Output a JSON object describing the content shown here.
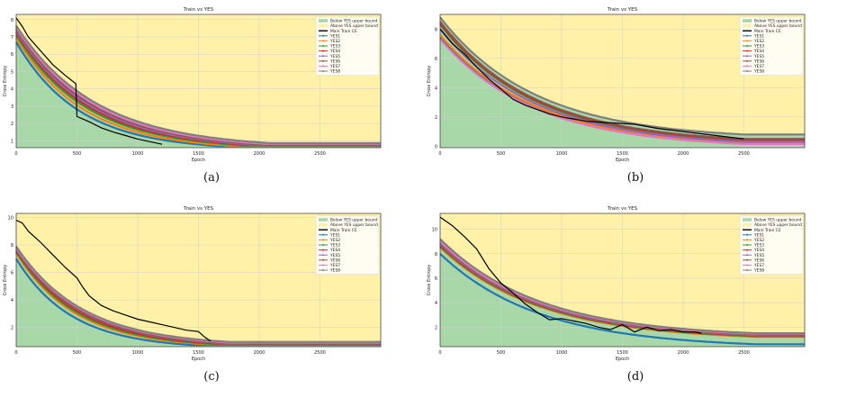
{
  "chart_data": [
    {
      "type": "line",
      "panel": "(a)",
      "title": "Train vs YES",
      "xlabel": "Epoch",
      "ylabel": "Cross Entropy",
      "xlim": [
        0,
        3000
      ],
      "ylim": [
        0.6,
        8.3
      ],
      "xticks": [
        0,
        500,
        1000,
        1500,
        2000,
        2500
      ],
      "yticks": [
        1,
        2,
        3,
        4,
        5,
        6,
        7,
        8
      ],
      "grid": true,
      "legend_position": "top-right",
      "legend": [
        "Below YES upper bound",
        "Above YES upper bound",
        "Main Train CE",
        "YES1",
        "YES2",
        "YES3",
        "YES4",
        "YES5",
        "YES6",
        "YES7",
        "YES8"
      ],
      "series": [
        {
          "name": "YES1",
          "color": "#1f77b4",
          "start": 6.7,
          "end": 0.7,
          "settle": 1650
        },
        {
          "name": "YES2",
          "color": "#ff7f0e",
          "start": 6.95,
          "end": 0.72,
          "settle": 1750
        },
        {
          "name": "YES3",
          "color": "#2ca02c",
          "start": 7.1,
          "end": 0.74,
          "settle": 1850
        },
        {
          "name": "YES4",
          "color": "#d62728",
          "start": 7.25,
          "end": 0.76,
          "settle": 1900
        },
        {
          "name": "YES5",
          "color": "#9467bd",
          "start": 7.35,
          "end": 0.78,
          "settle": 1950
        },
        {
          "name": "YES6",
          "color": "#8c564b",
          "start": 7.45,
          "end": 0.8,
          "settle": 2000
        },
        {
          "name": "YES7",
          "color": "#e377c2",
          "start": 7.55,
          "end": 0.82,
          "settle": 2050
        },
        {
          "name": "YES8",
          "color": "#7f7f7f",
          "start": 7.65,
          "end": 0.86,
          "settle": 2100
        },
        {
          "name": "Main Train CE",
          "color": "#000000",
          "x": [
            0,
            50,
            100,
            200,
            300,
            400,
            490,
            500,
            600,
            700,
            800,
            900,
            1000,
            1100,
            1200
          ],
          "y": [
            8.1,
            7.6,
            7.0,
            6.2,
            5.4,
            4.8,
            4.3,
            2.4,
            2.1,
            1.75,
            1.5,
            1.3,
            1.1,
            0.95,
            0.8
          ]
        }
      ]
    },
    {
      "type": "line",
      "panel": "(b)",
      "title": "Train vs YES",
      "xlabel": "Epoch",
      "ylabel": "Cross Entropy",
      "xlim": [
        0,
        3000
      ],
      "ylim": [
        -0.1,
        9.0
      ],
      "xticks": [
        0,
        500,
        1000,
        1500,
        2000,
        2500
      ],
      "yticks": [
        0,
        2,
        4,
        6,
        8
      ],
      "grid": true,
      "legend_position": "top-right",
      "legend": [
        "Below YES upper bound",
        "Above YES upper bound",
        "Main Train CE",
        "YES1",
        "YES2",
        "YES3",
        "YES4",
        "YES5",
        "YES6",
        "YES7",
        "YES8"
      ],
      "series": [
        {
          "name": "YES1",
          "color": "#1f77b4",
          "start": 7.4,
          "end": 0.2,
          "settle": 2500
        },
        {
          "name": "YES2",
          "color": "#ff7f0e",
          "start": 7.6,
          "end": 0.25,
          "settle": 2500
        },
        {
          "name": "YES3",
          "color": "#2ca02c",
          "start": 8.3,
          "end": 0.4,
          "settle": 2500
        },
        {
          "name": "YES4",
          "color": "#d62728",
          "start": 8.4,
          "end": 0.45,
          "settle": 2500
        },
        {
          "name": "YES5",
          "color": "#9467bd",
          "start": 8.0,
          "end": 0.3,
          "settle": 2500
        },
        {
          "name": "YES6",
          "color": "#8c564b",
          "start": 8.5,
          "end": 0.5,
          "settle": 2500
        },
        {
          "name": "YES7",
          "color": "#e377c2",
          "start": 7.3,
          "end": 0.15,
          "settle": 2500
        },
        {
          "name": "YES8",
          "color": "#7f7f7f",
          "start": 8.8,
          "end": 0.8,
          "settle": 2500
        },
        {
          "name": "Main Train CE",
          "color": "#000000",
          "x": [
            0,
            100,
            200,
            300,
            400,
            500,
            600,
            700,
            800,
            900,
            1000,
            1200,
            1400,
            1600,
            1800,
            2000,
            2200,
            2400,
            2500
          ],
          "y": [
            8.0,
            7.0,
            6.3,
            5.4,
            4.6,
            3.9,
            3.2,
            2.8,
            2.5,
            2.2,
            2.0,
            1.7,
            1.6,
            1.5,
            1.2,
            1.0,
            0.8,
            0.6,
            0.5
          ]
        }
      ]
    },
    {
      "type": "line",
      "panel": "(c)",
      "title": "Train vs YES",
      "xlabel": "Epoch",
      "ylabel": "Cross Entropy",
      "xlim": [
        0,
        3000
      ],
      "ylim": [
        0.6,
        10.3
      ],
      "xticks": [
        0,
        500,
        1000,
        1500,
        2000,
        2500
      ],
      "yticks": [
        2,
        4,
        6,
        8,
        10
      ],
      "grid": true,
      "legend_position": "top-right",
      "legend": [
        "Below YES upper bound",
        "Above YES upper bound",
        "Main Train CE",
        "YES1",
        "YES2",
        "YES3",
        "YES4",
        "YES5",
        "YES6",
        "YES7",
        "YES8"
      ],
      "series": [
        {
          "name": "YES1",
          "color": "#1f77b4",
          "start": 7.0,
          "end": 0.72,
          "settle": 1450
        },
        {
          "name": "YES2",
          "color": "#ff7f0e",
          "start": 7.4,
          "end": 0.78,
          "settle": 1550
        },
        {
          "name": "YES3",
          "color": "#2ca02c",
          "start": 7.5,
          "end": 0.8,
          "settle": 1600
        },
        {
          "name": "YES4",
          "color": "#d62728",
          "start": 7.6,
          "end": 0.82,
          "settle": 1650
        },
        {
          "name": "YES5",
          "color": "#9467bd",
          "start": 7.7,
          "end": 0.85,
          "settle": 1700
        },
        {
          "name": "YES6",
          "color": "#8c564b",
          "start": 7.75,
          "end": 0.88,
          "settle": 1700
        },
        {
          "name": "YES7",
          "color": "#e377c2",
          "start": 7.8,
          "end": 0.9,
          "settle": 1750
        },
        {
          "name": "YES8",
          "color": "#7f7f7f",
          "start": 7.9,
          "end": 0.95,
          "settle": 1750
        },
        {
          "name": "Main Train CE",
          "color": "#000000",
          "x": [
            0,
            50,
            100,
            200,
            300,
            400,
            500,
            550,
            600,
            700,
            800,
            900,
            1000,
            1100,
            1200,
            1300,
            1400,
            1500,
            1550,
            1600
          ],
          "y": [
            9.8,
            9.6,
            9.0,
            8.2,
            7.3,
            6.4,
            5.6,
            4.9,
            4.3,
            3.6,
            3.2,
            2.9,
            2.6,
            2.4,
            2.2,
            2.0,
            1.8,
            1.7,
            1.3,
            1.0
          ]
        }
      ]
    },
    {
      "type": "line",
      "panel": "(d)",
      "title": "Train vs YES",
      "xlabel": "Epoch",
      "ylabel": "Cross Entropy",
      "xlim": [
        0,
        3000
      ],
      "ylim": [
        0.4,
        11.3
      ],
      "xticks": [
        0,
        500,
        1000,
        1500,
        2000,
        2500
      ],
      "yticks": [
        2,
        4,
        6,
        8,
        10
      ],
      "grid": true,
      "legend_position": "top-right",
      "legend": [
        "Below YES upper bound",
        "Above YES upper bound",
        "Main Train CE",
        "YES1",
        "YES2",
        "YES3",
        "YES4",
        "YES5",
        "YES6",
        "YES7",
        "YES8"
      ],
      "series": [
        {
          "name": "YES1",
          "color": "#1f77b4",
          "start": 8.0,
          "end": 0.6,
          "settle": 2600
        },
        {
          "name": "YES2",
          "color": "#ff7f0e",
          "start": 8.5,
          "end": 1.2,
          "settle": 2600
        },
        {
          "name": "YES3",
          "color": "#2ca02c",
          "start": 8.6,
          "end": 1.25,
          "settle": 2600
        },
        {
          "name": "YES4",
          "color": "#d62728",
          "start": 8.7,
          "end": 1.3,
          "settle": 2600
        },
        {
          "name": "YES5",
          "color": "#9467bd",
          "start": 8.8,
          "end": 1.35,
          "settle": 2600
        },
        {
          "name": "YES6",
          "color": "#8c564b",
          "start": 8.9,
          "end": 1.4,
          "settle": 2600
        },
        {
          "name": "YES7",
          "color": "#e377c2",
          "start": 9.0,
          "end": 1.45,
          "settle": 2600
        },
        {
          "name": "YES8",
          "color": "#7f7f7f",
          "start": 9.2,
          "end": 1.5,
          "settle": 2600
        },
        {
          "name": "Main Train CE",
          "color": "#000000",
          "x": [
            0,
            100,
            200,
            300,
            400,
            500,
            600,
            700,
            800,
            900,
            1000,
            1100,
            1200,
            1300,
            1400,
            1500,
            1600,
            1700,
            1800,
            1900,
            2000,
            2100,
            2150
          ],
          "y": [
            11.0,
            10.3,
            9.4,
            8.4,
            6.8,
            5.6,
            4.8,
            3.9,
            3.2,
            2.6,
            2.7,
            2.5,
            2.3,
            2.0,
            1.8,
            2.2,
            1.6,
            2.0,
            1.7,
            1.8,
            1.6,
            1.6,
            1.5
          ]
        }
      ]
    }
  ]
}
